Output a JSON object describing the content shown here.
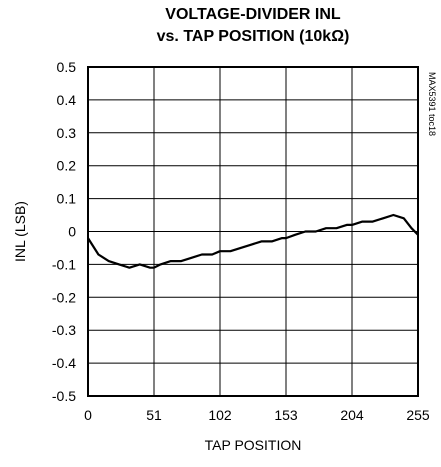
{
  "chart_data": {
    "type": "line",
    "title_line1": "VOLTAGE-DIVIDER INL",
    "title_line2": "vs. TAP POSITION (10kΩ)",
    "side_label": "MAX5391 toc18",
    "xlabel": "TAP POSITION",
    "ylabel": "INL (LSB)",
    "xlim": [
      0,
      255
    ],
    "ylim": [
      -0.5,
      0.5
    ],
    "x_ticks": [
      "0",
      "51",
      "102",
      "153",
      "204",
      "255"
    ],
    "y_ticks": [
      "0.5",
      "0.4",
      "0.3",
      "0.2",
      "0.1",
      "0",
      "-0.1",
      "-0.2",
      "-0.3",
      "-0.4",
      "-0.5"
    ],
    "grid": true,
    "series": [
      {
        "x": [
          0,
          8,
          16,
          24,
          32,
          40,
          48,
          51,
          56,
          64,
          72,
          80,
          88,
          96,
          102,
          110,
          118,
          126,
          134,
          142,
          150,
          153,
          160,
          168,
          176,
          184,
          192,
          200,
          204,
          212,
          220,
          228,
          236,
          244,
          250,
          255
        ],
        "y": [
          -0.02,
          -0.07,
          -0.09,
          -0.1,
          -0.11,
          -0.1,
          -0.11,
          -0.11,
          -0.1,
          -0.09,
          -0.09,
          -0.08,
          -0.07,
          -0.07,
          -0.06,
          -0.06,
          -0.05,
          -0.04,
          -0.03,
          -0.03,
          -0.02,
          -0.02,
          -0.01,
          0.0,
          0.0,
          0.01,
          0.01,
          0.02,
          0.02,
          0.03,
          0.03,
          0.04,
          0.05,
          0.04,
          0.01,
          -0.01
        ]
      }
    ]
  }
}
